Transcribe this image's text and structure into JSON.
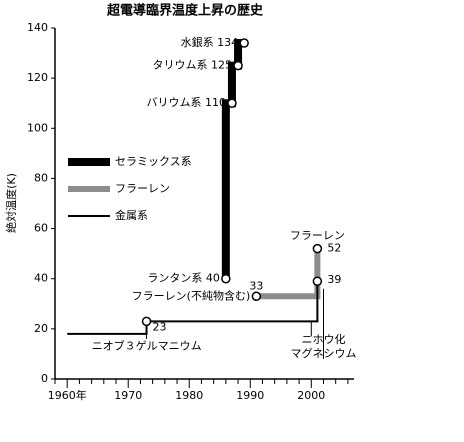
{
  "chart_data": {
    "type": "line",
    "title": "超電導臨界温度上昇の歴史",
    "y_label": "絶対温度(K)",
    "xlim": [
      1958,
      2007
    ],
    "ylim": [
      0,
      140
    ],
    "yticks": [
      0,
      20,
      40,
      60,
      80,
      100,
      120,
      140
    ],
    "xticks": [
      {
        "value": 1960,
        "label": "1960年"
      },
      1970,
      1980,
      1990,
      2000
    ],
    "xminorticks": [
      1958,
      1962,
      1964,
      1966,
      1968,
      1972,
      1974,
      1976,
      1978,
      1982,
      1984,
      1986,
      1988,
      1992,
      1994,
      1996,
      1998,
      2002,
      2004,
      2006
    ],
    "series": [
      {
        "name": "セラミックス系",
        "color": "#000000",
        "width": 8,
        "x": [
          1986,
          1986,
          1987,
          1987,
          1988,
          1988,
          1989
        ],
        "values": [
          40,
          110,
          110,
          125,
          125,
          134,
          134
        ]
      },
      {
        "name": "フラーレン",
        "color": "#8c8c8c",
        "width": 6,
        "x": [
          1991,
          2001,
          2001
        ],
        "values": [
          33,
          33,
          52
        ]
      },
      {
        "name": "金属系",
        "color": "#000000",
        "width": 2,
        "x": [
          1960,
          1973,
          1973,
          2001,
          2001
        ],
        "values": [
          18,
          18,
          23,
          23,
          39
        ]
      }
    ],
    "points": [
      {
        "label": "ランタン系 40",
        "x": 1986,
        "value": 40
      },
      {
        "label": "バリウム系 110",
        "x": 1987,
        "value": 110
      },
      {
        "label": "タリウム系 125",
        "x": 1988,
        "value": 125
      },
      {
        "label": "水銀系 134",
        "x": 1989,
        "value": 134
      },
      {
        "label": "23",
        "x": 1973,
        "value": 23
      },
      {
        "label": "33",
        "x": 1991,
        "value": 33
      },
      {
        "label": "52",
        "x": 2001,
        "value": 52
      },
      {
        "label": "39",
        "x": 2001,
        "value": 39
      }
    ],
    "annotations": [
      "ニオブ３ゲルマニウム",
      "フラーレン(不純物含む)",
      "フラーレン",
      "ニホウ化",
      "マグネシウム"
    ]
  }
}
